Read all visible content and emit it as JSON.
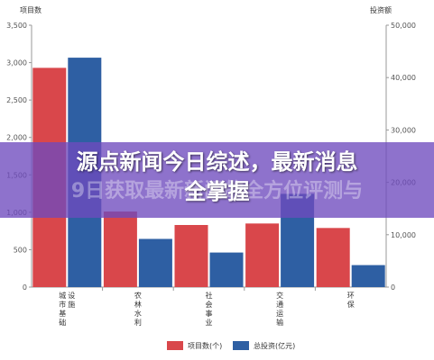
{
  "chart_data": {
    "type": "bar",
    "categories": [
      "城市基础设施",
      "农林水利",
      "社会事业",
      "交通运输",
      "环保"
    ],
    "series": [
      {
        "name": "项目数(个)",
        "axis": "left",
        "color": "#d9474b",
        "values": [
          2930,
          1010,
          830,
          850,
          790
        ]
      },
      {
        "name": "总投资(亿元)",
        "axis": "right",
        "color": "#2e5fa3",
        "values": [
          43800,
          9200,
          6600,
          17800,
          4200
        ]
      }
    ],
    "ylabel": "项目数",
    "y2label": "投资额",
    "ylim": [
      0,
      3500
    ],
    "y2lim": [
      0,
      50000
    ],
    "yticks": [
      "0",
      "500",
      "1,000",
      "1,500",
      "2,000",
      "2,500",
      "3,000",
      "3,500"
    ],
    "y2ticks": [
      "0",
      "10,000",
      "20,000",
      "30,000",
      "40,000",
      "50,000"
    ],
    "legend_position": "bottom",
    "grid": false
  },
  "banner": {
    "title_line1": "源点新闻今日综述，最新消息",
    "title_line2": "全掌握",
    "background_text": "9日获取最新新闻的全方位评测与"
  },
  "colors": {
    "bar_left": "#d9474b",
    "bar_right": "#2e5fa3",
    "banner": "#6e4abe"
  }
}
